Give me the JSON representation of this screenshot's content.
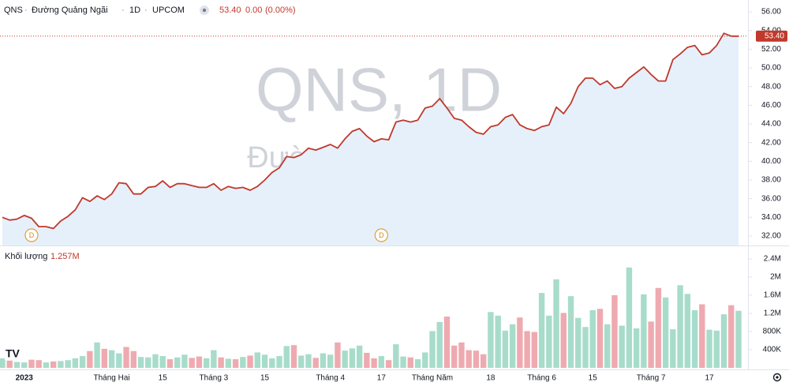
{
  "header": {
    "symbol": "QNS",
    "name": "Đường Quảng Ngãi",
    "interval": "1D",
    "exchange": "UPCOM",
    "separator": "·",
    "price": "53.40",
    "change": "0.00",
    "change_pct": "(0.00%)"
  },
  "watermark": {
    "line1": "QNS, 1D",
    "line2": "Đường Quảng Ngãi"
  },
  "chart_data": [
    {
      "type": "line",
      "color": "#c0392b",
      "area_color": "#e6f0fb",
      "values": [
        34.0,
        33.7,
        33.8,
        34.2,
        33.9,
        33.0,
        33.0,
        32.8,
        33.6,
        34.1,
        34.8,
        36.1,
        35.7,
        36.3,
        35.9,
        36.5,
        37.7,
        37.6,
        36.5,
        36.5,
        37.2,
        37.3,
        37.9,
        37.2,
        37.6,
        37.6,
        37.4,
        37.2,
        37.2,
        37.6,
        36.9,
        37.3,
        37.1,
        37.2,
        36.9,
        37.3,
        38.0,
        38.8,
        39.3,
        40.5,
        40.4,
        40.7,
        41.4,
        41.2,
        41.5,
        41.8,
        41.4,
        42.4,
        43.2,
        43.5,
        42.7,
        42.1,
        42.4,
        42.3,
        44.2,
        44.4,
        44.2,
        44.4,
        45.7,
        45.9,
        46.7,
        45.7,
        44.6,
        44.4,
        43.7,
        43.1,
        42.9,
        43.7,
        43.9,
        44.7,
        45.0,
        43.9,
        43.5,
        43.3,
        43.7,
        43.9,
        45.8,
        45.1,
        46.2,
        48.0,
        48.9,
        48.9,
        48.2,
        48.6,
        47.8,
        48.0,
        48.9,
        49.5,
        50.1,
        49.3,
        48.6,
        48.6,
        50.9,
        51.5,
        52.2,
        52.4,
        51.4,
        51.6,
        52.4,
        53.7,
        53.4,
        53.4
      ],
      "ylim": [
        30.98,
        57.27
      ],
      "yticks": [
        {
          "value": 32,
          "label": "32.00"
        },
        {
          "value": 34,
          "label": "34.00"
        },
        {
          "value": 36,
          "label": "36.00"
        },
        {
          "value": 38,
          "label": "38.00"
        },
        {
          "value": 40,
          "label": "40.00"
        },
        {
          "value": 42,
          "label": "42.00"
        },
        {
          "value": 44,
          "label": "44.00"
        },
        {
          "value": 46,
          "label": "46.00"
        },
        {
          "value": 48,
          "label": "48.00"
        },
        {
          "value": 50,
          "label": "50.00"
        },
        {
          "value": 52,
          "label": "52.00"
        },
        {
          "value": 54,
          "label": "54.00"
        },
        {
          "value": 56,
          "label": "56.00"
        }
      ],
      "last_price": {
        "value": 53.4,
        "label": "53.40"
      },
      "dividend_markers": [
        {
          "x": 4,
          "label": "D"
        },
        {
          "x": 52,
          "label": "D"
        }
      ]
    },
    {
      "type": "bar",
      "title": "Khối lượng",
      "last_label": "1.257M",
      "up_color": "#a8dcca",
      "down_color": "#eeaab0",
      "categories": [
        null,
        null,
        null,
        "2023",
        null,
        null,
        null,
        null,
        null,
        null,
        null,
        null,
        null,
        null,
        null,
        "Tháng Hai",
        null,
        null,
        null,
        null,
        null,
        null,
        "15",
        null,
        null,
        null,
        null,
        null,
        null,
        "Tháng 3",
        null,
        null,
        null,
        null,
        null,
        null,
        "15",
        null,
        null,
        null,
        null,
        null,
        null,
        null,
        null,
        "Tháng 4",
        null,
        null,
        null,
        null,
        null,
        null,
        "17",
        null,
        null,
        null,
        null,
        null,
        null,
        "Tháng Năm",
        null,
        null,
        null,
        null,
        null,
        null,
        null,
        "18",
        null,
        null,
        null,
        null,
        null,
        null,
        "Tháng 6",
        null,
        null,
        null,
        null,
        null,
        null,
        "15",
        null,
        null,
        null,
        null,
        null,
        null,
        null,
        "Tháng 7",
        null,
        null,
        null,
        null,
        null,
        null,
        null,
        "17",
        null,
        null,
        null,
        null
      ],
      "values": [
        210000,
        160000,
        130000,
        120000,
        180000,
        170000,
        120000,
        140000,
        150000,
        170000,
        210000,
        260000,
        370000,
        560000,
        420000,
        390000,
        320000,
        460000,
        370000,
        240000,
        230000,
        300000,
        260000,
        190000,
        230000,
        290000,
        220000,
        250000,
        210000,
        390000,
        230000,
        200000,
        190000,
        240000,
        270000,
        340000,
        290000,
        210000,
        260000,
        480000,
        500000,
        270000,
        300000,
        220000,
        320000,
        290000,
        560000,
        380000,
        430000,
        490000,
        330000,
        210000,
        260000,
        170000,
        520000,
        250000,
        230000,
        190000,
        340000,
        810000,
        1010000,
        1130000,
        490000,
        560000,
        390000,
        380000,
        300000,
        1230000,
        1150000,
        820000,
        960000,
        1110000,
        810000,
        790000,
        1650000,
        1150000,
        1950000,
        1210000,
        1580000,
        1100000,
        900000,
        1270000,
        1300000,
        960000,
        1600000,
        930000,
        2210000,
        870000,
        1620000,
        1020000,
        1760000,
        1550000,
        850000,
        1820000,
        1630000,
        1270000,
        1400000,
        840000,
        820000,
        1180000,
        1380000,
        1257000
      ],
      "ylim": [
        0,
        2626000
      ],
      "yticks": [
        {
          "value": 400000,
          "label": "400K"
        },
        {
          "value": 800000,
          "label": "800K"
        },
        {
          "value": 1200000,
          "label": "1.2M"
        },
        {
          "value": 1600000,
          "label": "1.6M"
        },
        {
          "value": 2000000,
          "label": "2M"
        },
        {
          "value": 2400000,
          "label": "2.4M"
        }
      ]
    }
  ]
}
